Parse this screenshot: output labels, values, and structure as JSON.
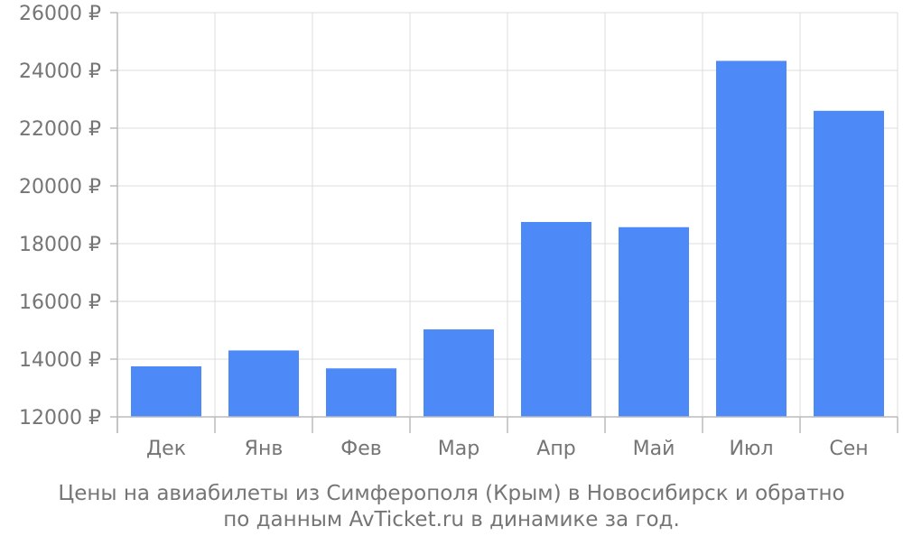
{
  "chart_data": {
    "type": "bar",
    "categories": [
      "Дек",
      "Янв",
      "Фев",
      "Мар",
      "Апр",
      "Май",
      "Июл",
      "Сен"
    ],
    "values": [
      13750,
      14300,
      13680,
      15030,
      18750,
      18570,
      24330,
      22600
    ],
    "ylim": [
      12000,
      26000
    ],
    "yticks": [
      12000,
      14000,
      16000,
      18000,
      20000,
      22000,
      24000,
      26000
    ],
    "y_tick_suffix": " ₽",
    "grid": true,
    "bar_color": "#4d8af8",
    "grid_color": "#dddddd",
    "axis_color": "#bbbbbb",
    "text_color": "#757575"
  },
  "caption": {
    "line1": "Цены на авиабилеты из Симферополя (Крым) в Новосибирск и обратно",
    "line2": "по данным AvTicket.ru в динамике за год."
  }
}
